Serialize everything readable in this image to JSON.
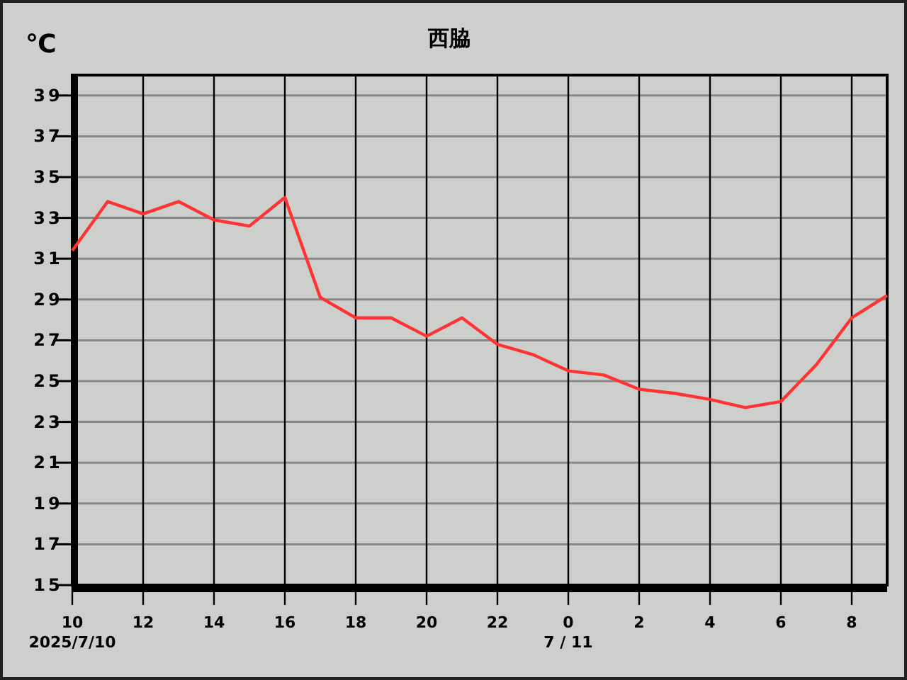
{
  "chart_data": {
    "type": "line",
    "title": "西脇",
    "ylabel": "℃",
    "x": [
      "2025-07-10T10:00",
      "2025-07-10T11:00",
      "2025-07-10T12:00",
      "2025-07-10T13:00",
      "2025-07-10T14:00",
      "2025-07-10T15:00",
      "2025-07-10T16:00",
      "2025-07-10T17:00",
      "2025-07-10T18:00",
      "2025-07-10T19:00",
      "2025-07-10T20:00",
      "2025-07-10T21:00",
      "2025-07-10T22:00",
      "2025-07-10T23:00",
      "2025-07-11T00:00",
      "2025-07-11T01:00",
      "2025-07-11T02:00",
      "2025-07-11T03:00",
      "2025-07-11T04:00",
      "2025-07-11T05:00",
      "2025-07-11T06:00",
      "2025-07-11T07:00",
      "2025-07-11T08:00",
      "2025-07-11T09:00"
    ],
    "series": [
      {
        "color": "#ff3333",
        "values": [
          31.4,
          33.8,
          33.2,
          33.8,
          32.9,
          32.6,
          34.0,
          29.1,
          28.1,
          28.1,
          27.2,
          28.1,
          26.8,
          26.3,
          25.5,
          25.3,
          24.6,
          24.4,
          24.1,
          23.7,
          24.0,
          25.8,
          28.1,
          29.2
        ]
      }
    ],
    "xlim": [
      "2025-07-10T10:00",
      "2025-07-11T09:00"
    ],
    "xticks": [
      {
        "value": "2025-07-10T10:00",
        "label": "10"
      },
      {
        "value": "2025-07-10T12:00",
        "label": "12"
      },
      {
        "value": "2025-07-10T14:00",
        "label": "14"
      },
      {
        "value": "2025-07-10T16:00",
        "label": "16"
      },
      {
        "value": "2025-07-10T18:00",
        "label": "18"
      },
      {
        "value": "2025-07-10T20:00",
        "label": "20"
      },
      {
        "value": "2025-07-10T22:00",
        "label": "22"
      },
      {
        "value": "2025-07-11T00:00",
        "label": "0"
      },
      {
        "value": "2025-07-11T02:00",
        "label": "2"
      },
      {
        "value": "2025-07-11T04:00",
        "label": "4"
      },
      {
        "value": "2025-07-11T06:00",
        "label": "6"
      },
      {
        "value": "2025-07-11T08:00",
        "label": "8"
      }
    ],
    "ylim": [
      15,
      40
    ],
    "yticks": [
      15,
      17,
      19,
      21,
      23,
      25,
      27,
      29,
      31,
      33,
      35,
      37,
      39
    ],
    "grid": true,
    "marker": "none",
    "line_style": "solid",
    "annotations": [
      "2025/7/10",
      "7 / 11"
    ]
  }
}
